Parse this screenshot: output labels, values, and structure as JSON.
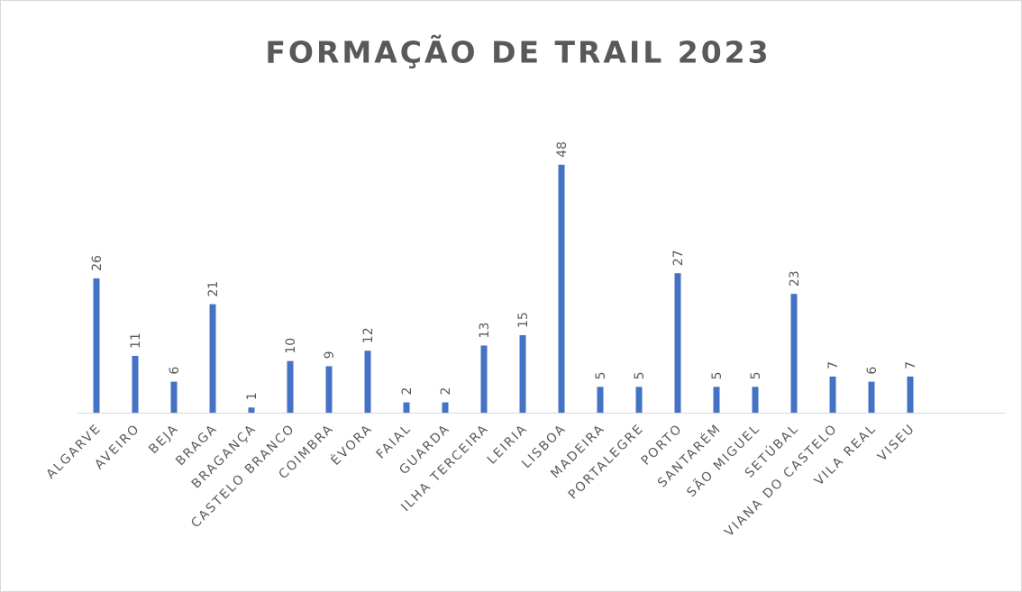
{
  "chart_data": {
    "type": "bar",
    "title": "FORMAÇÃO DE TRAIL 2023",
    "categories": [
      "ALGARVE",
      "AVEIRO",
      "BEJA",
      "BRAGA",
      "BRAGANÇA",
      "CASTELO BRANCO",
      "COIMBRA",
      "ÉVORA",
      "FAIAL",
      "GUARDA",
      "ILHA TERCEIRA",
      "LEIRIA",
      "LISBOA",
      "MADEIRA",
      "PORTALEGRE",
      "PORTO",
      "SANTARÉM",
      "SÃO MIGUEL",
      "SETÚBAL",
      "VIANA DO CASTELO",
      "VILA REAL",
      "VISEU"
    ],
    "values": [
      26,
      11,
      6,
      21,
      1,
      10,
      9,
      12,
      2,
      2,
      13,
      15,
      48,
      5,
      5,
      27,
      5,
      5,
      23,
      7,
      6,
      7
    ],
    "color": "#4472c4",
    "ylim": [
      0,
      60
    ]
  }
}
